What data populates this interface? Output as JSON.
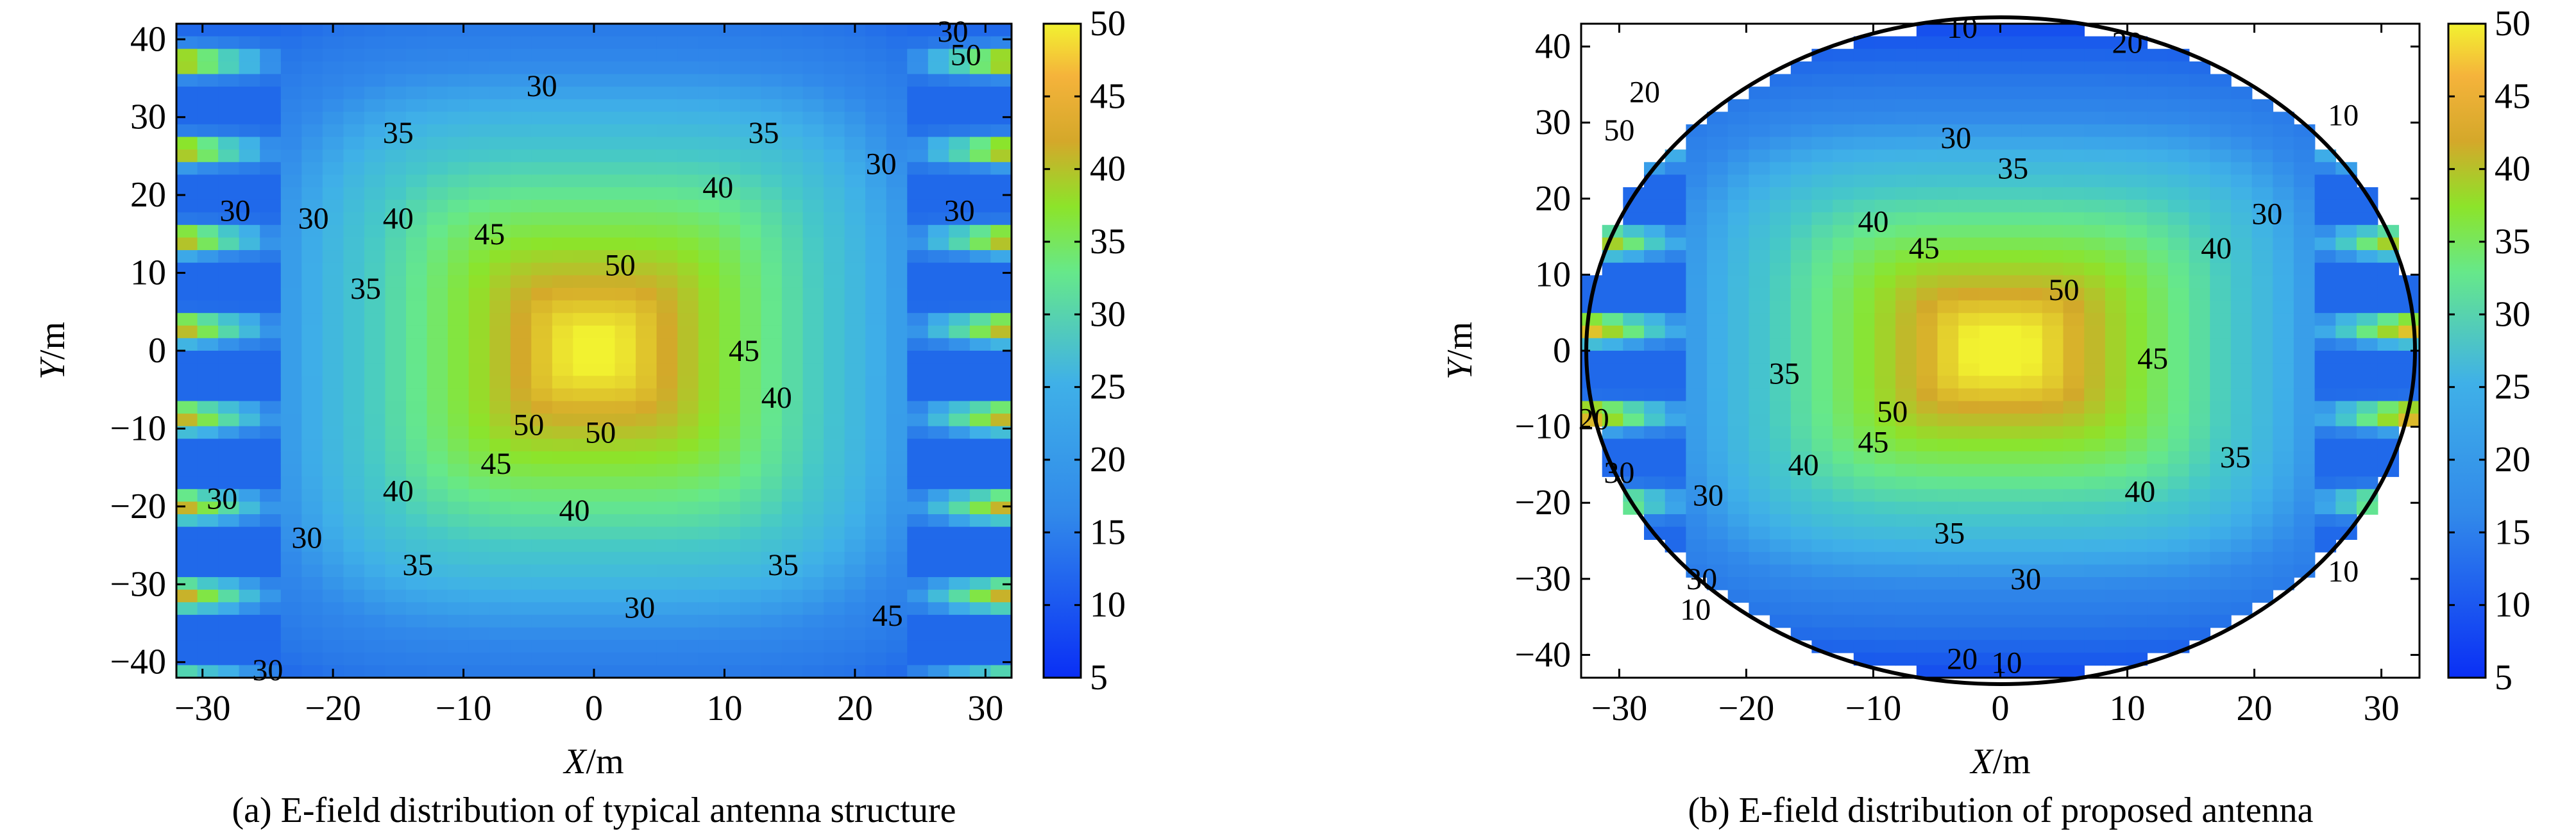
{
  "chart_data": [
    {
      "type": "heatmap",
      "subtype": "filled-contour",
      "caption": "(a) E-field distribution of typical antenna structure",
      "xlabel_var": "X",
      "xlabel_unit": "/m",
      "ylabel_var": "Y",
      "ylabel_unit": "/m",
      "xlim": [
        -32,
        32
      ],
      "ylim": [
        -42,
        42
      ],
      "xticks": [
        -30,
        -20,
        -10,
        0,
        10,
        20,
        30
      ],
      "yticks": [
        -40,
        -30,
        -20,
        -10,
        0,
        10,
        20,
        30,
        40
      ],
      "domain_shape": "rectangle",
      "colorbar": {
        "min": 5,
        "max": 50,
        "ticks": [
          5,
          10,
          15,
          20,
          25,
          30,
          35,
          40,
          45,
          50
        ]
      },
      "field_model": {
        "center_value": 52,
        "half_width_x": 22,
        "half_width_y": 32,
        "power": 4,
        "edge_value": 20
      },
      "contour_labels": [
        {
          "text": "30",
          "x": -4,
          "y": 34
        },
        {
          "text": "35",
          "x": -15,
          "y": 28
        },
        {
          "text": "35",
          "x": 13,
          "y": 28
        },
        {
          "text": "40",
          "x": 9.5,
          "y": 21
        },
        {
          "text": "40",
          "x": -15,
          "y": 17
        },
        {
          "text": "45",
          "x": -8,
          "y": 15
        },
        {
          "text": "50",
          "x": 2,
          "y": 11
        },
        {
          "text": "35",
          "x": -17.5,
          "y": 8
        },
        {
          "text": "45",
          "x": 11.5,
          "y": 0
        },
        {
          "text": "40",
          "x": 14,
          "y": -6
        },
        {
          "text": "50",
          "x": -5,
          "y": -9.5
        },
        {
          "text": "50",
          "x": 0.5,
          "y": -10.5
        },
        {
          "text": "45",
          "x": -7.5,
          "y": -14.5
        },
        {
          "text": "40",
          "x": -15,
          "y": -18
        },
        {
          "text": "40",
          "x": -1.5,
          "y": -20.5
        },
        {
          "text": "35",
          "x": -13.5,
          "y": -27.5
        },
        {
          "text": "35",
          "x": 14.5,
          "y": -27.5
        },
        {
          "text": "30",
          "x": 3.5,
          "y": -33
        },
        {
          "text": "30",
          "x": 27.5,
          "y": 41
        },
        {
          "text": "50",
          "x": 28.5,
          "y": 38
        },
        {
          "text": "30",
          "x": 22,
          "y": 24
        },
        {
          "text": "30",
          "x": -27.5,
          "y": 18
        },
        {
          "text": "30",
          "x": -21.5,
          "y": 17
        },
        {
          "text": "30",
          "x": 28,
          "y": 18
        },
        {
          "text": "30",
          "x": -28.5,
          "y": -19
        },
        {
          "text": "30",
          "x": -22,
          "y": -24
        },
        {
          "text": "45",
          "x": 22.5,
          "y": -34
        },
        {
          "text": "30",
          "x": -25,
          "y": -41
        }
      ]
    },
    {
      "type": "heatmap",
      "subtype": "filled-contour",
      "caption": "(b) E-field distribution of proposed antenna",
      "xlabel_var": "X",
      "xlabel_unit": "/m",
      "ylabel_var": "Y",
      "ylabel_unit": "/m",
      "xlim": [
        -33,
        33
      ],
      "ylim": [
        -43,
        43
      ],
      "xticks": [
        -30,
        -20,
        -10,
        0,
        10,
        20,
        30
      ],
      "yticks": [
        -40,
        -30,
        -20,
        -10,
        0,
        10,
        20,
        30,
        40
      ],
      "domain_shape": "ellipse",
      "colorbar": {
        "min": 5,
        "max": 50,
        "ticks": [
          5,
          10,
          15,
          20,
          25,
          30,
          35,
          40,
          45,
          50
        ]
      },
      "field_model": {
        "center_value": 53,
        "half_width_x": 22,
        "half_width_y": 26,
        "power": 4,
        "edge_value": 21
      },
      "contour_labels": [
        {
          "text": "10",
          "x": -3,
          "y": 42.5
        },
        {
          "text": "20",
          "x": 10,
          "y": 40.5
        },
        {
          "text": "20",
          "x": -28,
          "y": 34
        },
        {
          "text": "10",
          "x": 27,
          "y": 31
        },
        {
          "text": "50",
          "x": -30,
          "y": 29
        },
        {
          "text": "30",
          "x": -3.5,
          "y": 28
        },
        {
          "text": "35",
          "x": 1,
          "y": 24
        },
        {
          "text": "30",
          "x": 21,
          "y": 18
        },
        {
          "text": "40",
          "x": -10,
          "y": 17
        },
        {
          "text": "45",
          "x": -6,
          "y": 13.5
        },
        {
          "text": "40",
          "x": 17,
          "y": 13.5
        },
        {
          "text": "50",
          "x": 5,
          "y": 8
        },
        {
          "text": "45",
          "x": 12,
          "y": -1
        },
        {
          "text": "35",
          "x": -17,
          "y": -3
        },
        {
          "text": "50",
          "x": -8.5,
          "y": -8
        },
        {
          "text": "45",
          "x": -10,
          "y": -12
        },
        {
          "text": "35",
          "x": 18.5,
          "y": -14
        },
        {
          "text": "40",
          "x": -15.5,
          "y": -15
        },
        {
          "text": "40",
          "x": 11,
          "y": -18.5
        },
        {
          "text": "35",
          "x": -4,
          "y": -24
        },
        {
          "text": "30",
          "x": -30,
          "y": -16
        },
        {
          "text": "30",
          "x": -23,
          "y": -19
        },
        {
          "text": "30",
          "x": -23.5,
          "y": -30
        },
        {
          "text": "20",
          "x": -32,
          "y": -9
        },
        {
          "text": "30",
          "x": 2,
          "y": -30
        },
        {
          "text": "10",
          "x": 27,
          "y": -29
        },
        {
          "text": "10",
          "x": -24,
          "y": -34
        },
        {
          "text": "20",
          "x": -3,
          "y": -40.5
        },
        {
          "text": "10",
          "x": 0.5,
          "y": -41
        }
      ]
    }
  ]
}
